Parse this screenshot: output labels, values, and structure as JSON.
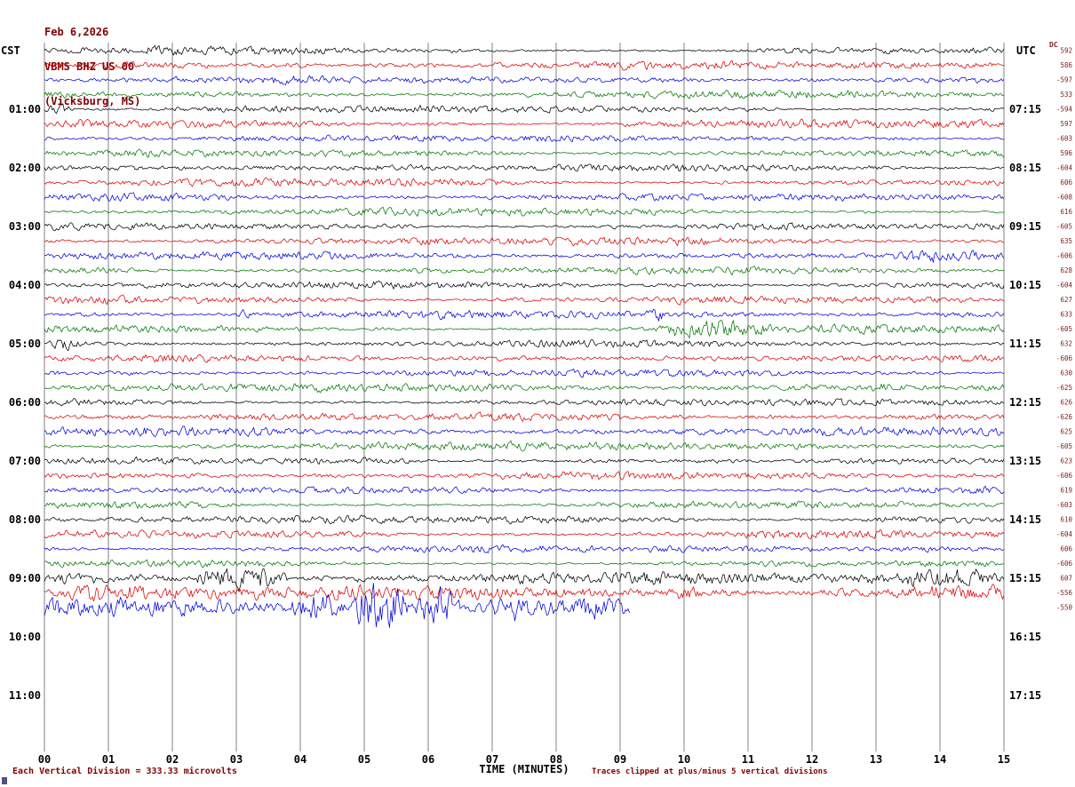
{
  "header": {
    "date": "Feb 6,2026",
    "station": "VBMS BHZ US 00",
    "location": "(Vicksburg, MS)"
  },
  "left_axis": {
    "title": "CST",
    "labels": [
      "01:00",
      "02:00",
      "03:00",
      "04:00",
      "05:00",
      "06:00",
      "07:00",
      "08:00",
      "09:00",
      "10:00",
      "11:00"
    ]
  },
  "right_axis": {
    "title": "UTC",
    "dc_header": "DC",
    "labels": [
      "07:15",
      "08:15",
      "09:15",
      "10:15",
      "11:15",
      "12:15",
      "13:15",
      "14:15",
      "15:15",
      "16:15",
      "17:15"
    ],
    "dc_values": [
      "592",
      "586",
      "-597",
      "533",
      "-594",
      "597",
      "-603",
      "596",
      "-604",
      "606",
      "-608",
      "616",
      "-605",
      "635",
      "-606",
      "628",
      "-604",
      "627",
      "633",
      "-605",
      "632",
      "-606",
      "630",
      "-625",
      "626",
      "-626",
      "625",
      "-605",
      "623",
      "-606",
      "619",
      "-603",
      "610",
      "-604",
      "606",
      "-606",
      "607",
      "-556",
      "-550"
    ]
  },
  "x_axis": {
    "title": "TIME (MINUTES)",
    "ticks": [
      "00",
      "01",
      "02",
      "03",
      "04",
      "05",
      "06",
      "07",
      "08",
      "09",
      "10",
      "11",
      "12",
      "13",
      "14",
      "15"
    ]
  },
  "footer": {
    "left_note": "Each Vertical Division =  333.33 microvolts",
    "right_note": "Traces clipped at plus/minus 5 vertical divisions"
  },
  "chart_data": {
    "type": "line",
    "title": "Helicorder record VBMS BHZ US 00 (Vicksburg, MS) Feb 6,2026",
    "xlabel": "TIME (MINUTES)",
    "x_range_minutes": [
      0,
      15
    ],
    "minutes_per_line": 15,
    "num_traces": 39,
    "first_trace_cst": "00:00",
    "last_trace_cst": "09:30",
    "utc_offset_of_right_labels": "+6:15",
    "trace_colors": {
      "black": "#000000",
      "red": "#dd0000",
      "blue": "#0000dd",
      "green": "#007700"
    },
    "color_cycle": [
      "black",
      "red",
      "blue",
      "green"
    ],
    "grid_color": "#808080",
    "base_amp": 3.2,
    "row_amp": {
      "36": 5,
      "37": 6,
      "38": 9
    },
    "partial_end": {
      "38": 9.15
    },
    "clip_divisions": 5,
    "microvolts_per_division": 333.33,
    "events": [
      {
        "row": 4,
        "start": 0.0,
        "end": 0.5,
        "amp": 6
      },
      {
        "row": 4,
        "start": 5.7,
        "end": 6.4,
        "amp": 6
      },
      {
        "row": 8,
        "start": 0.0,
        "end": 0.4,
        "amp": 5
      },
      {
        "row": 14,
        "start": 13.2,
        "end": 14.8,
        "amp": 8
      },
      {
        "row": 18,
        "start": 3.0,
        "end": 3.3,
        "amp": 6
      },
      {
        "row": 18,
        "start": 4.9,
        "end": 5.2,
        "amp": 6
      },
      {
        "row": 18,
        "start": 8.1,
        "end": 8.4,
        "amp": 6
      },
      {
        "row": 18,
        "start": 9.4,
        "end": 9.7,
        "amp": 9
      },
      {
        "row": 19,
        "start": 9.6,
        "end": 11.4,
        "amp": 12
      },
      {
        "row": 20,
        "start": 0.0,
        "end": 0.6,
        "amp": 7
      },
      {
        "row": 23,
        "start": 12.8,
        "end": 13.4,
        "amp": 6
      },
      {
        "row": 26,
        "start": 13.6,
        "end": 14.1,
        "amp": 6
      },
      {
        "row": 33,
        "start": 2.1,
        "end": 2.5,
        "amp": 5
      },
      {
        "row": 36,
        "start": 0.0,
        "end": 0.7,
        "amp": 7
      },
      {
        "row": 36,
        "start": 2.3,
        "end": 3.8,
        "amp": 14
      },
      {
        "row": 36,
        "start": 9.2,
        "end": 9.8,
        "amp": 6
      },
      {
        "row": 36,
        "start": 13.1,
        "end": 15.0,
        "amp": 12
      },
      {
        "row": 37,
        "start": 0.1,
        "end": 1.9,
        "amp": 11
      },
      {
        "row": 37,
        "start": 4.1,
        "end": 5.7,
        "amp": 9
      },
      {
        "row": 37,
        "start": 6.3,
        "end": 7.7,
        "amp": 8
      },
      {
        "row": 37,
        "start": 9.7,
        "end": 10.4,
        "amp": 8
      },
      {
        "row": 37,
        "start": 13.3,
        "end": 14.7,
        "amp": 9
      },
      {
        "row": 38,
        "start": 0.7,
        "end": 1.4,
        "amp": 14
      },
      {
        "row": 38,
        "start": 3.8,
        "end": 4.7,
        "amp": 20
      },
      {
        "row": 38,
        "start": 4.8,
        "end": 5.7,
        "amp": 34
      },
      {
        "row": 38,
        "start": 5.8,
        "end": 6.5,
        "amp": 24
      },
      {
        "row": 38,
        "start": 6.9,
        "end": 7.8,
        "amp": 16
      }
    ]
  }
}
